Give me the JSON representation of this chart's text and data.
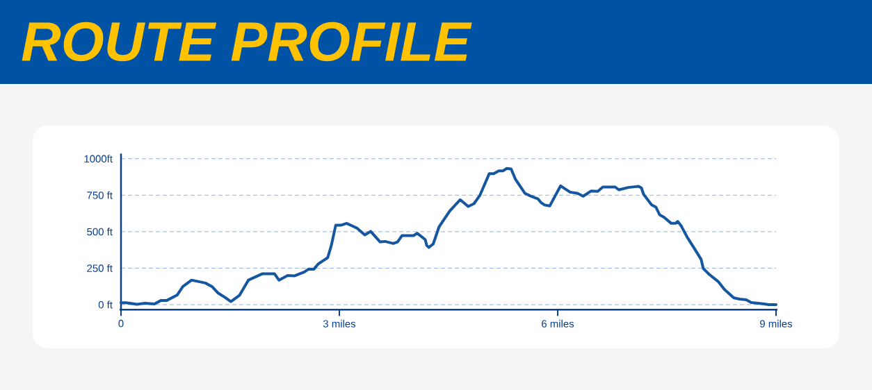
{
  "chart_data": {
    "type": "line",
    "title": "ROUTE PROFILE",
    "x": [
      0,
      0.07,
      0.22,
      0.33,
      0.46,
      0.55,
      0.63,
      0.77,
      0.85,
      0.97,
      1.16,
      1.25,
      1.33,
      1.43,
      1.51,
      1.63,
      1.75,
      1.94,
      2.11,
      2.17,
      2.29,
      2.38,
      2.52,
      2.58,
      2.65,
      2.71,
      2.84,
      2.89,
      2.95,
      3.02,
      3.1,
      3.24,
      3.35,
      3.43,
      3.56,
      3.63,
      3.74,
      3.8,
      3.86,
      4.02,
      4.07,
      4.18,
      4.2,
      4.23,
      4.29,
      4.37,
      4.52,
      4.58,
      4.66,
      4.77,
      4.85,
      4.93,
      5.06,
      5.12,
      5.19,
      5.25,
      5.3,
      5.36,
      5.42,
      5.55,
      5.63,
      5.73,
      5.77,
      5.82,
      5.89,
      6.04,
      6.17,
      6.27,
      6.35,
      6.46,
      6.55,
      6.62,
      6.79,
      6.84,
      6.97,
      7.11,
      7.15,
      7.18,
      7.29,
      7.35,
      7.4,
      7.46,
      7.56,
      7.62,
      7.65,
      7.7,
      7.78,
      7.89,
      7.97,
      8.0,
      8.08,
      8.21,
      8.29,
      8.42,
      8.5,
      8.59,
      8.66,
      8.82,
      8.9,
      9.0
    ],
    "values": [
      13,
      13,
      2,
      10,
      5,
      29,
      29,
      65,
      124,
      168,
      148,
      124,
      81,
      49,
      21,
      65,
      168,
      211,
      211,
      168,
      200,
      197,
      224,
      244,
      243,
      279,
      322,
      406,
      544,
      544,
      557,
      525,
      478,
      502,
      430,
      433,
      419,
      430,
      473,
      473,
      489,
      446,
      406,
      392,
      416,
      533,
      644,
      676,
      719,
      673,
      692,
      748,
      898,
      898,
      917,
      917,
      933,
      930,
      859,
      763,
      743,
      724,
      700,
      683,
      676,
      814,
      771,
      763,
      743,
      779,
      776,
      806,
      806,
      787,
      803,
      811,
      800,
      756,
      684,
      668,
      616,
      599,
      557,
      557,
      570,
      537,
      462,
      375,
      311,
      248,
      208,
      156,
      105,
      46,
      38,
      33,
      14,
      6,
      0,
      0
    ],
    "color": "#1457a0",
    "line_style": "solid",
    "xlim": [
      0,
      9
    ],
    "ylim": [
      -35,
      1035
    ],
    "xticks": [
      {
        "value": 0,
        "label": "0"
      },
      {
        "value": 3,
        "label": "3 miles"
      },
      {
        "value": 6,
        "label": "6 miles"
      },
      {
        "value": 9,
        "label": "9 miles"
      }
    ],
    "yticks": [
      {
        "value": 0,
        "label": "0 ft"
      },
      {
        "value": 250,
        "label": "250 ft"
      },
      {
        "value": 500,
        "label": "500 ft"
      },
      {
        "value": 750,
        "label": "750 ft"
      },
      {
        "value": 1000,
        "label": "1000ft"
      }
    ],
    "grid": "y"
  }
}
